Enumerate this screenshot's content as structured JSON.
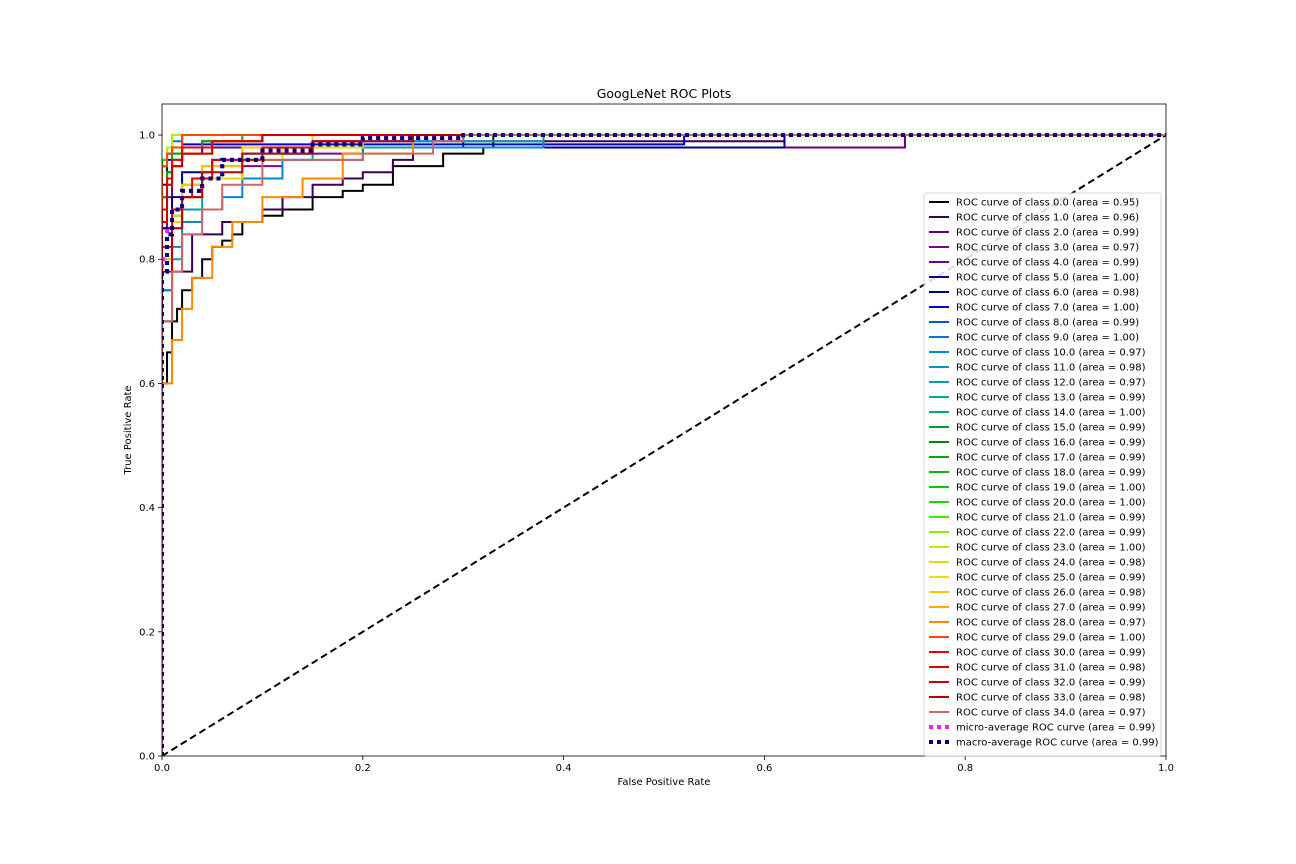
{
  "chart_data": {
    "type": "line",
    "title": "GoogLeNet ROC Plots",
    "xlabel": "False Positive Rate",
    "ylabel": "True Positive Rate",
    "xlim": [
      0.0,
      1.0
    ],
    "ylim": [
      0.0,
      1.05
    ],
    "xticks": [
      "0.0",
      "0.2",
      "0.4",
      "0.6",
      "0.8",
      "1.0"
    ],
    "yticks": [
      "0.0",
      "0.2",
      "0.4",
      "0.6",
      "0.8",
      "1.0"
    ],
    "grid": false,
    "legend_position": "right",
    "series": [
      {
        "name": "ROC curve of class 0.0 (area = 0.95)",
        "color": "#000000",
        "x": [
          0,
          0,
          0.005,
          0.01,
          0.015,
          0.02,
          0.03,
          0.04,
          0.05,
          0.06,
          0.07,
          0.08,
          0.1,
          0.12,
          0.15,
          0.18,
          0.2,
          0.23,
          0.28,
          0.32,
          0.33,
          1.0
        ],
        "y": [
          0,
          0.45,
          0.6,
          0.65,
          0.7,
          0.72,
          0.75,
          0.77,
          0.8,
          0.82,
          0.83,
          0.84,
          0.86,
          0.87,
          0.88,
          0.9,
          0.91,
          0.92,
          0.95,
          0.97,
          0.98,
          1.0
        ]
      },
      {
        "name": "ROC curve of class 1.0 (area = 0.96)",
        "color": "#3a0052",
        "x": [
          0,
          0,
          0.01,
          0.03,
          0.06,
          0.1,
          0.12,
          0.15,
          0.18,
          0.2,
          0.23,
          0.25,
          0.3,
          0.62,
          1.0
        ],
        "y": [
          0,
          0.55,
          0.7,
          0.78,
          0.84,
          0.86,
          0.88,
          0.9,
          0.92,
          0.93,
          0.94,
          0.96,
          0.98,
          0.99,
          1.0
        ]
      },
      {
        "name": "ROC curve of class 2.0 (area = 0.99)",
        "color": "#65007a",
        "x": [
          0,
          0,
          0.005,
          0.01,
          0.02,
          0.04,
          0.06,
          0.74,
          0.75,
          1.0
        ],
        "y": [
          0,
          0.7,
          0.85,
          0.9,
          0.95,
          0.97,
          0.98,
          0.98,
          1.0,
          1.0
        ]
      },
      {
        "name": "ROC curve of class 3.0 (area = 0.97)",
        "color": "#7d008f",
        "x": [
          0,
          0,
          0.01,
          0.02,
          0.04,
          0.08,
          0.12,
          0.2,
          0.3,
          1.0
        ],
        "y": [
          0,
          0.6,
          0.75,
          0.85,
          0.9,
          0.93,
          0.95,
          0.97,
          0.99,
          1.0
        ]
      },
      {
        "name": "ROC curve of class 4.0 (area = 0.99)",
        "color": "#6e009b",
        "x": [
          0,
          0,
          0.005,
          0.01,
          0.02,
          0.04,
          0.1,
          1.0
        ],
        "y": [
          0,
          0.75,
          0.85,
          0.92,
          0.95,
          0.97,
          0.99,
          1.0
        ]
      },
      {
        "name": "ROC curve of class 5.0 (area = 1.00)",
        "color": "#0a0090",
        "x": [
          0,
          0,
          0.005,
          0.01,
          0.02,
          0.05,
          1.0
        ],
        "y": [
          0,
          0.85,
          0.92,
          0.96,
          0.98,
          1.0,
          1.0
        ]
      },
      {
        "name": "ROC curve of class 6.0 (area = 0.98)",
        "color": "#000084",
        "x": [
          0,
          0,
          0.01,
          0.02,
          0.05,
          0.1,
          0.2,
          0.62,
          0.62,
          1.0
        ],
        "y": [
          0,
          0.7,
          0.85,
          0.9,
          0.94,
          0.96,
          0.98,
          0.98,
          1.0,
          1.0
        ]
      },
      {
        "name": "ROC curve of class 7.0 (area = 1.00)",
        "color": "#0000dd",
        "x": [
          0,
          0,
          0.005,
          0.01,
          0.02,
          0.05,
          0.52,
          0.52,
          1.0
        ],
        "y": [
          0,
          0.9,
          0.95,
          0.97,
          0.98,
          0.985,
          0.985,
          1.0,
          1.0
        ]
      },
      {
        "name": "ROC curve of class 8.0 (area = 0.99)",
        "color": "#0055dd",
        "x": [
          0,
          0,
          0.005,
          0.01,
          0.02,
          0.05,
          0.1,
          1.0
        ],
        "y": [
          0,
          0.8,
          0.9,
          0.94,
          0.96,
          0.98,
          0.99,
          1.0
        ]
      },
      {
        "name": "ROC curve of class 9.0 (area = 1.00)",
        "color": "#0077dd",
        "x": [
          0,
          0,
          0.005,
          0.01,
          0.02,
          0.05,
          1.0
        ],
        "y": [
          0,
          0.9,
          0.95,
          0.97,
          0.99,
          1.0,
          1.0
        ]
      },
      {
        "name": "ROC curve of class 10.0 (area = 0.97)",
        "color": "#0088cc",
        "x": [
          0,
          0,
          0.01,
          0.02,
          0.04,
          0.06,
          0.08,
          0.12,
          0.2,
          0.38,
          0.39,
          1.0
        ],
        "y": [
          0,
          0.5,
          0.75,
          0.82,
          0.86,
          0.88,
          0.9,
          0.93,
          0.96,
          0.98,
          1.0,
          1.0
        ]
      },
      {
        "name": "ROC curve of class 11.0 (area = 0.98)",
        "color": "#0099bb",
        "x": [
          0,
          0,
          0.01,
          0.02,
          0.04,
          0.08,
          0.15,
          0.3,
          1.0
        ],
        "y": [
          0,
          0.6,
          0.8,
          0.87,
          0.92,
          0.95,
          0.97,
          0.99,
          1.0
        ]
      },
      {
        "name": "ROC curve of class 12.0 (area = 0.97)",
        "color": "#00a0aa",
        "x": [
          0,
          0,
          0.01,
          0.02,
          0.04,
          0.08,
          0.15,
          0.25,
          0.38,
          1.0
        ],
        "y": [
          0,
          0.3,
          0.7,
          0.8,
          0.88,
          0.93,
          0.96,
          0.98,
          0.99,
          1.0
        ]
      },
      {
        "name": "ROC curve of class 13.0 (area = 0.99)",
        "color": "#00aa99",
        "x": [
          0,
          0,
          0.005,
          0.01,
          0.02,
          0.05,
          0.1,
          1.0
        ],
        "y": [
          0,
          0.8,
          0.9,
          0.94,
          0.96,
          0.98,
          0.99,
          1.0
        ]
      },
      {
        "name": "ROC curve of class 14.0 (area = 1.00)",
        "color": "#00a880",
        "x": [
          0,
          0,
          0.005,
          0.01,
          0.02,
          1.0
        ],
        "y": [
          0,
          0.9,
          0.95,
          0.98,
          1.0,
          1.0
        ]
      },
      {
        "name": "ROC curve of class 15.0 (area = 0.99)",
        "color": "#009933",
        "x": [
          0,
          0,
          0.005,
          0.01,
          0.02,
          0.05,
          0.1,
          1.0
        ],
        "y": [
          0,
          0.8,
          0.88,
          0.93,
          0.96,
          0.98,
          0.99,
          1.0
        ]
      },
      {
        "name": "ROC curve of class 16.0 (area = 0.99)",
        "color": "#008800",
        "x": [
          0,
          0,
          0.005,
          0.01,
          0.02,
          0.05,
          0.1,
          1.0
        ],
        "y": [
          0,
          0.82,
          0.9,
          0.94,
          0.97,
          0.98,
          0.99,
          1.0
        ]
      },
      {
        "name": "ROC curve of class 17.0 (area = 0.99)",
        "color": "#00aa00",
        "x": [
          0,
          0,
          0.005,
          0.01,
          0.02,
          0.04,
          0.08,
          1.0
        ],
        "y": [
          0,
          0.8,
          0.9,
          0.94,
          0.97,
          0.98,
          0.99,
          1.0
        ]
      },
      {
        "name": "ROC curve of class 18.0 (area = 0.99)",
        "color": "#00bb00",
        "x": [
          0,
          0,
          0.005,
          0.01,
          0.02,
          0.05,
          0.1,
          1.0
        ],
        "y": [
          0,
          0.78,
          0.88,
          0.93,
          0.96,
          0.98,
          0.99,
          1.0
        ]
      },
      {
        "name": "ROC curve of class 19.0 (area = 1.00)",
        "color": "#00cc00",
        "x": [
          0,
          0,
          0.005,
          0.01,
          0.02,
          1.0
        ],
        "y": [
          0,
          0.9,
          0.96,
          0.98,
          1.0,
          1.0
        ]
      },
      {
        "name": "ROC curve of class 20.0 (area = 1.00)",
        "color": "#11dd00",
        "x": [
          0,
          0,
          0.005,
          0.01,
          0.015,
          1.0
        ],
        "y": [
          0,
          0.92,
          0.96,
          0.98,
          1.0,
          1.0
        ]
      },
      {
        "name": "ROC curve of class 21.0 (area = 0.99)",
        "color": "#33ee00",
        "x": [
          0,
          0,
          0.005,
          0.01,
          0.02,
          0.05,
          0.1,
          1.0
        ],
        "y": [
          0,
          0.75,
          0.86,
          0.92,
          0.96,
          0.98,
          0.99,
          1.0
        ]
      },
      {
        "name": "ROC curve of class 22.0 (area = 0.99)",
        "color": "#88ee00",
        "x": [
          0,
          0,
          0.005,
          0.01,
          0.02,
          0.05,
          0.1,
          1.0
        ],
        "y": [
          0,
          0.8,
          0.88,
          0.93,
          0.96,
          0.98,
          0.99,
          1.0
        ]
      },
      {
        "name": "ROC curve of class 23.0 (area = 1.00)",
        "color": "#bbee00",
        "x": [
          0,
          0,
          0.005,
          0.01,
          0.03,
          1.0
        ],
        "y": [
          0,
          0.9,
          0.95,
          0.98,
          1.0,
          1.0
        ]
      },
      {
        "name": "ROC curve of class 24.0 (area = 0.98)",
        "color": "#dddd00",
        "x": [
          0,
          0,
          0.01,
          0.02,
          0.04,
          0.08,
          0.12,
          0.2,
          1.0
        ],
        "y": [
          0,
          0.6,
          0.8,
          0.86,
          0.9,
          0.93,
          0.96,
          0.98,
          1.0
        ]
      },
      {
        "name": "ROC curve of class 25.0 (area = 0.99)",
        "color": "#eedd00",
        "x": [
          0,
          0,
          0.005,
          0.01,
          0.02,
          0.05,
          0.1,
          1.0
        ],
        "y": [
          0,
          0.75,
          0.86,
          0.92,
          0.95,
          0.97,
          0.99,
          1.0
        ]
      },
      {
        "name": "ROC curve of class 26.0 (area = 0.98)",
        "color": "#eecc00",
        "x": [
          0,
          0,
          0.01,
          0.02,
          0.04,
          0.08,
          0.15,
          1.0
        ],
        "y": [
          0,
          0.65,
          0.8,
          0.87,
          0.92,
          0.95,
          0.98,
          1.0
        ]
      },
      {
        "name": "ROC curve of class 27.0 (area = 0.99)",
        "color": "#ffaa00",
        "x": [
          0,
          0,
          0.005,
          0.01,
          0.02,
          0.05,
          0.1,
          1.0
        ],
        "y": [
          0,
          0.75,
          0.86,
          0.92,
          0.95,
          0.97,
          0.99,
          1.0
        ]
      },
      {
        "name": "ROC curve of class 28.0 (area = 0.97)",
        "color": "#ff8800",
        "x": [
          0,
          0,
          0.01,
          0.02,
          0.03,
          0.05,
          0.07,
          0.1,
          0.14,
          0.18,
          0.25,
          1.0
        ],
        "y": [
          0,
          0.45,
          0.6,
          0.67,
          0.72,
          0.77,
          0.82,
          0.86,
          0.9,
          0.93,
          0.97,
          1.0
        ]
      },
      {
        "name": "ROC curve of class 29.0 (area = 1.00)",
        "color": "#ff4400",
        "x": [
          0,
          0,
          0.005,
          0.01,
          0.02,
          0.04,
          1.0
        ],
        "y": [
          0,
          0.9,
          0.95,
          0.97,
          0.98,
          1.0,
          1.0
        ]
      },
      {
        "name": "ROC curve of class 30.0 (area = 0.99)",
        "color": "#ee0000",
        "x": [
          0,
          0,
          0.005,
          0.01,
          0.02,
          0.05,
          0.1,
          1.0
        ],
        "y": [
          0,
          0.78,
          0.88,
          0.93,
          0.96,
          0.98,
          0.99,
          1.0
        ]
      },
      {
        "name": "ROC curve of class 31.0 (area = 0.98)",
        "color": "#dd0000",
        "x": [
          0,
          0,
          0.01,
          0.02,
          0.03,
          0.05,
          0.1,
          0.15,
          0.2,
          1.0
        ],
        "y": [
          0,
          0.7,
          0.82,
          0.88,
          0.9,
          0.93,
          0.96,
          0.98,
          0.99,
          1.0
        ]
      },
      {
        "name": "ROC curve of class 32.0 (area = 0.99)",
        "color": "#cc0000",
        "x": [
          0,
          0,
          0.005,
          0.01,
          0.02,
          0.05,
          0.1,
          1.0
        ],
        "y": [
          0,
          0.75,
          0.86,
          0.92,
          0.95,
          0.97,
          0.99,
          1.0
        ]
      },
      {
        "name": "ROC curve of class 33.0 (area = 0.98)",
        "color": "#bb0000",
        "x": [
          0,
          0,
          0.01,
          0.02,
          0.04,
          0.08,
          0.15,
          0.25,
          1.0
        ],
        "y": [
          0,
          0.6,
          0.78,
          0.85,
          0.9,
          0.94,
          0.97,
          0.99,
          1.0
        ]
      },
      {
        "name": "ROC curve of class 34.0 (area = 0.97)",
        "color": "#cc6666",
        "x": [
          0,
          0,
          0.01,
          0.02,
          0.04,
          0.06,
          0.1,
          0.2,
          0.27,
          0.3,
          1.0
        ],
        "y": [
          0,
          0.55,
          0.7,
          0.78,
          0.84,
          0.88,
          0.92,
          0.96,
          0.97,
          0.99,
          1.0
        ]
      },
      {
        "name": "micro-average ROC curve (area = 0.99)",
        "color": "#ff1aff",
        "style": "dotted",
        "x": [
          0,
          0,
          0.005,
          0.01,
          0.02,
          0.04,
          0.06,
          0.1,
          0.15,
          0.2,
          0.3,
          0.4,
          1.0
        ],
        "y": [
          0,
          0.7,
          0.8,
          0.85,
          0.88,
          0.91,
          0.93,
          0.96,
          0.975,
          0.985,
          0.995,
          1.0,
          1.0
        ]
      },
      {
        "name": "macro-average ROC curve (area = 0.99)",
        "color": "#000080",
        "style": "dotted",
        "x": [
          0,
          0,
          0.005,
          0.01,
          0.02,
          0.04,
          0.06,
          0.1,
          0.15,
          0.2,
          0.3,
          0.4,
          1.0
        ],
        "y": [
          0,
          0.68,
          0.78,
          0.84,
          0.88,
          0.91,
          0.93,
          0.96,
          0.975,
          0.985,
          0.995,
          1.0,
          1.0
        ]
      }
    ],
    "reference_line": {
      "x": [
        0,
        1
      ],
      "y": [
        0,
        1
      ],
      "color": "#000000",
      "style": "dashed"
    }
  }
}
